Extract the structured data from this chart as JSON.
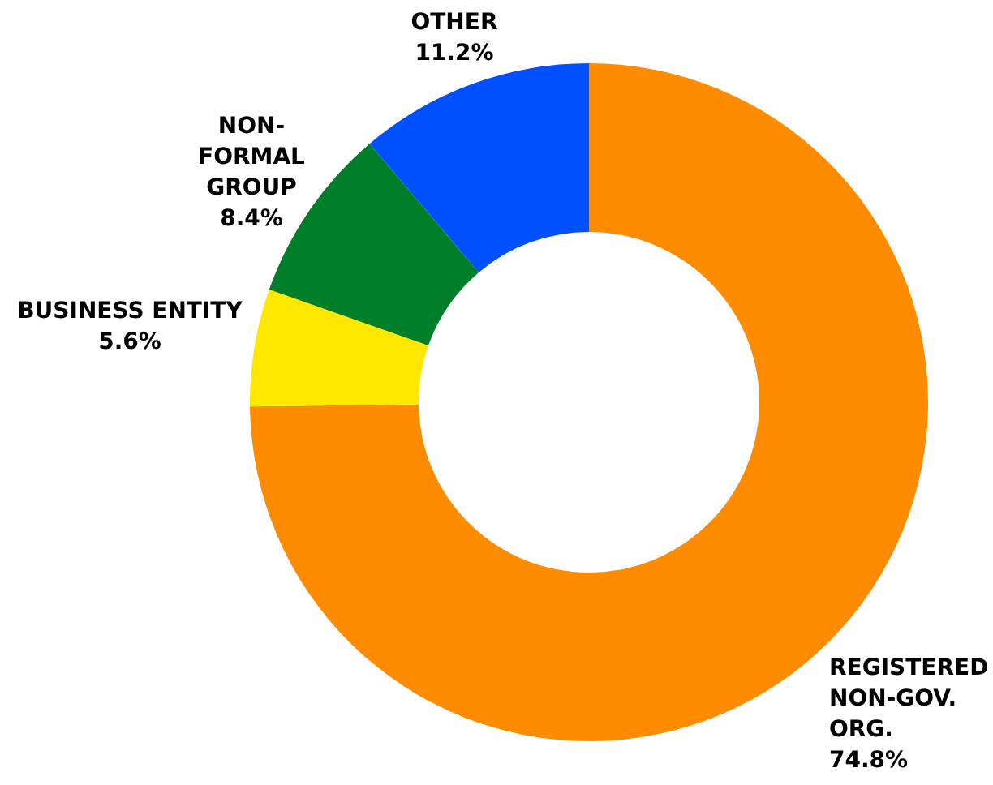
{
  "chart_data": {
    "type": "donut",
    "categories": [
      "REGISTERED NON-GOV. ORG.",
      "BUSINESS ENTITY",
      "NON-FORMAL GROUP",
      "OTHER"
    ],
    "values": [
      74.8,
      5.6,
      8.4,
      11.2
    ],
    "colors": [
      "#ff8c00",
      "#ffe800",
      "#007f2a",
      "#0050ff"
    ],
    "value_labels": [
      "74.8%",
      "5.6%",
      "8.4%",
      "11.2%"
    ]
  }
}
